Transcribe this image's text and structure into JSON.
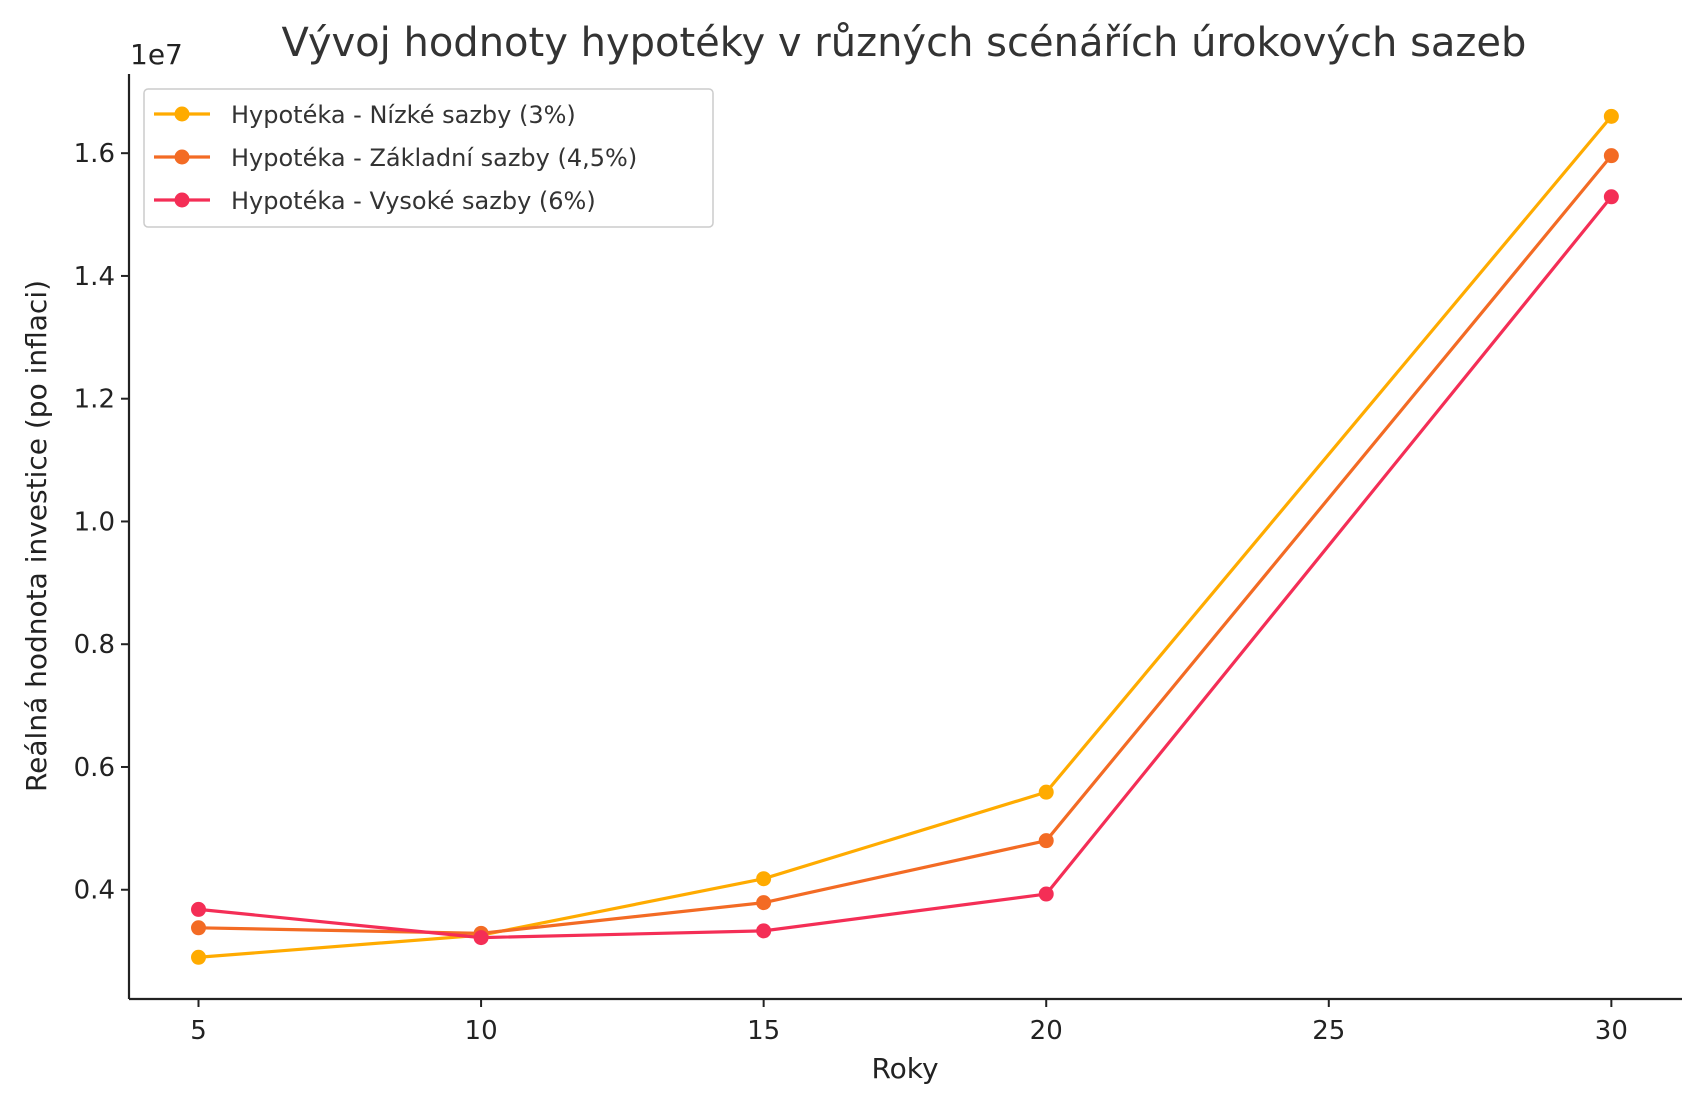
{
  "chart_data": {
    "type": "line",
    "title": "Vývoj hodnoty hypotéky v různých scénářích úrokových sazeb",
    "xlabel": "Roky",
    "ylabel": "Reálná hodnota investice (po inflaci)",
    "y_offset_label": "1e7",
    "x": [
      5,
      10,
      15,
      20,
      30
    ],
    "xticks": [
      5,
      10,
      15,
      20,
      25,
      30
    ],
    "yticks": [
      0.4,
      0.6,
      0.8,
      1.0,
      1.2,
      1.4,
      1.6
    ],
    "ytick_labels": [
      "0.4",
      "0.6",
      "0.8",
      "1.0",
      "1.2",
      "1.4",
      "1.6"
    ],
    "xlim": [
      3.77,
      31.25
    ],
    "ylim": [
      0.222,
      1.729
    ],
    "grid": false,
    "legend_position": "top-left",
    "series": [
      {
        "name": "Hypotéka - Nízké sazby (3%)",
        "color": "#ffab00",
        "values": [
          0.29,
          0.326,
          0.418,
          0.559,
          1.66
        ]
      },
      {
        "name": "Hypotéka - Základní sazby (4,5%)",
        "color": "#f36b24",
        "values": [
          0.338,
          0.329,
          0.379,
          0.48,
          1.596
        ]
      },
      {
        "name": "Hypotéka - Vysoké sazby (6%)",
        "color": "#f42e56",
        "values": [
          0.368,
          0.322,
          0.333,
          0.393,
          1.529
        ]
      }
    ]
  }
}
